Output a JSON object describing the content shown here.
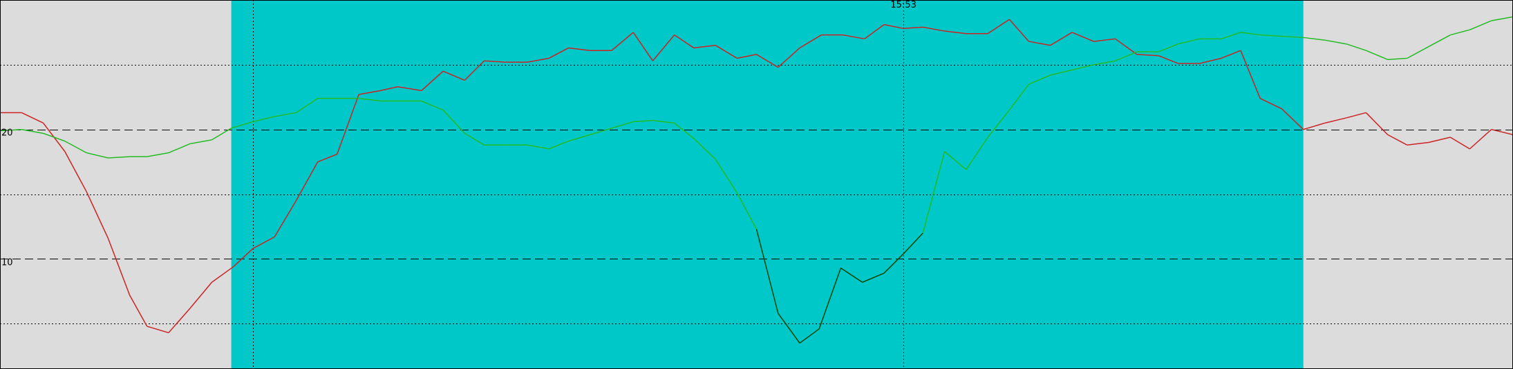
{
  "chart_data": {
    "type": "line",
    "title": "",
    "xlabel": "",
    "ylabel": "",
    "grid": true,
    "x_range": [
      0,
      70
    ],
    "y_range": [
      1.5,
      30
    ],
    "highlight_range": {
      "x_from": 10.7,
      "x_to": 60.3
    },
    "y_ticks": [
      {
        "value": 20,
        "label": "20"
      },
      {
        "value": 10,
        "label": "10"
      }
    ],
    "x_ticks": [
      {
        "value": 11.7,
        "label": ""
      },
      {
        "value": 41.8,
        "label": "15:53"
      }
    ],
    "series": [
      {
        "name": "",
        "color": "#cc2222",
        "points": [
          [
            0,
            21.3
          ],
          [
            1,
            21.3
          ],
          [
            2,
            20.5
          ],
          [
            3,
            18.3
          ],
          [
            4,
            15.2
          ],
          [
            5,
            11.6
          ],
          [
            6,
            7.2
          ],
          [
            6.8,
            4.8
          ],
          [
            7.8,
            4.3
          ],
          [
            8.8,
            6.2
          ],
          [
            9.8,
            8.2
          ],
          [
            10.8,
            9.4
          ],
          [
            11.7,
            10.8
          ],
          [
            12.7,
            11.7
          ],
          [
            13.7,
            14.5
          ],
          [
            14.7,
            17.5
          ],
          [
            15.6,
            18.1
          ],
          [
            16.6,
            22.7
          ],
          [
            17.6,
            23
          ],
          [
            18.4,
            23.3
          ],
          [
            19.5,
            23
          ],
          [
            20.5,
            24.5
          ],
          [
            21.5,
            23.8
          ],
          [
            22.4,
            25.3
          ],
          [
            23.4,
            25.2
          ],
          [
            24.4,
            25.2
          ],
          [
            25.4,
            25.5
          ],
          [
            26.3,
            26.3
          ],
          [
            27.3,
            26.1
          ],
          [
            28.3,
            26.1
          ],
          [
            29.3,
            27.5
          ],
          [
            30.2,
            25.3
          ],
          [
            31.2,
            27.3
          ],
          [
            32.1,
            26.3
          ],
          [
            33.1,
            26.5
          ],
          [
            34.1,
            25.5
          ],
          [
            35,
            25.8
          ],
          [
            36,
            24.8
          ],
          [
            37,
            26.3
          ],
          [
            38,
            27.3
          ],
          [
            39,
            27.3
          ],
          [
            40,
            27
          ],
          [
            40.9,
            28.1
          ],
          [
            41.8,
            27.8
          ],
          [
            42.7,
            27.9
          ],
          [
            43.7,
            27.6
          ],
          [
            44.7,
            27.4
          ],
          [
            45.7,
            27.4
          ],
          [
            46.7,
            28.5
          ],
          [
            47.6,
            26.8
          ],
          [
            48.6,
            26.5
          ],
          [
            49.6,
            27.5
          ],
          [
            50.6,
            26.8
          ],
          [
            51.6,
            27
          ],
          [
            52.6,
            25.8
          ],
          [
            53.6,
            25.7
          ],
          [
            54.5,
            25.1
          ],
          [
            55.5,
            25.1
          ],
          [
            56.5,
            25.5
          ],
          [
            57.4,
            26.1
          ],
          [
            58.3,
            22.4
          ],
          [
            59.3,
            21.6
          ],
          [
            60.3,
            20
          ],
          [
            61.3,
            20.5
          ],
          [
            62.3,
            20.9
          ],
          [
            63.2,
            21.3
          ],
          [
            64.2,
            19.6
          ],
          [
            65.1,
            18.8
          ],
          [
            66.1,
            19
          ],
          [
            67.1,
            19.4
          ],
          [
            68,
            18.5
          ],
          [
            69,
            20
          ],
          [
            70,
            19.6
          ]
        ]
      },
      {
        "name": "",
        "color": "#22bb22",
        "low_color": "#004400",
        "low_threshold": 14.5,
        "points": [
          [
            0,
            19.9
          ],
          [
            1,
            20
          ],
          [
            2,
            19.7
          ],
          [
            3,
            19.1
          ],
          [
            4,
            18.2
          ],
          [
            5,
            17.8
          ],
          [
            6,
            17.9
          ],
          [
            6.8,
            17.9
          ],
          [
            7.8,
            18.2
          ],
          [
            8.8,
            18.9
          ],
          [
            9.8,
            19.2
          ],
          [
            10.7,
            20.1
          ],
          [
            11.7,
            20.6
          ],
          [
            12.7,
            21
          ],
          [
            13.7,
            21.3
          ],
          [
            14.7,
            22.4
          ],
          [
            15.6,
            22.4
          ],
          [
            16.6,
            22.4
          ],
          [
            17.6,
            22.2
          ],
          [
            18.4,
            22.2
          ],
          [
            19.5,
            22.2
          ],
          [
            20.5,
            21.5
          ],
          [
            21.5,
            19.7
          ],
          [
            22.4,
            18.8
          ],
          [
            23.4,
            18.8
          ],
          [
            24.4,
            18.8
          ],
          [
            25.4,
            18.5
          ],
          [
            26.3,
            19.1
          ],
          [
            27.3,
            19.6
          ],
          [
            28.3,
            20.1
          ],
          [
            29.3,
            20.6
          ],
          [
            30.2,
            20.7
          ],
          [
            31.2,
            20.5
          ],
          [
            32.1,
            19.3
          ],
          [
            33.1,
            17.7
          ],
          [
            34.1,
            15.1
          ],
          [
            35,
            12.3
          ],
          [
            36,
            5.8
          ],
          [
            37,
            3.5
          ],
          [
            37.9,
            4.6
          ],
          [
            38.9,
            9.3
          ],
          [
            39.9,
            8.2
          ],
          [
            40.9,
            8.9
          ],
          [
            41.8,
            10.4
          ],
          [
            42.7,
            12
          ],
          [
            43.7,
            18.3
          ],
          [
            44.7,
            16.9
          ],
          [
            45.7,
            19.4
          ],
          [
            46.7,
            21.5
          ],
          [
            47.6,
            23.5
          ],
          [
            48.6,
            24.2
          ],
          [
            49.6,
            24.6
          ],
          [
            50.6,
            25
          ],
          [
            51.6,
            25.3
          ],
          [
            52.6,
            26
          ],
          [
            53.6,
            26
          ],
          [
            54.5,
            26.6
          ],
          [
            55.5,
            27
          ],
          [
            56.5,
            27
          ],
          [
            57.4,
            27.5
          ],
          [
            58.3,
            27.3
          ],
          [
            59.3,
            27.2
          ],
          [
            60.3,
            27.1
          ],
          [
            61.3,
            26.9
          ],
          [
            62.3,
            26.6
          ],
          [
            63.2,
            26.1
          ],
          [
            64.2,
            25.4
          ],
          [
            65.1,
            25.5
          ],
          [
            66.1,
            26.4
          ],
          [
            67.1,
            27.3
          ],
          [
            68,
            27.7
          ],
          [
            69,
            28.4
          ],
          [
            70,
            28.7
          ]
        ]
      }
    ],
    "colors": {
      "background": "#dcdcdc",
      "highlight": "#00c8c8",
      "grid": "#000000"
    }
  }
}
